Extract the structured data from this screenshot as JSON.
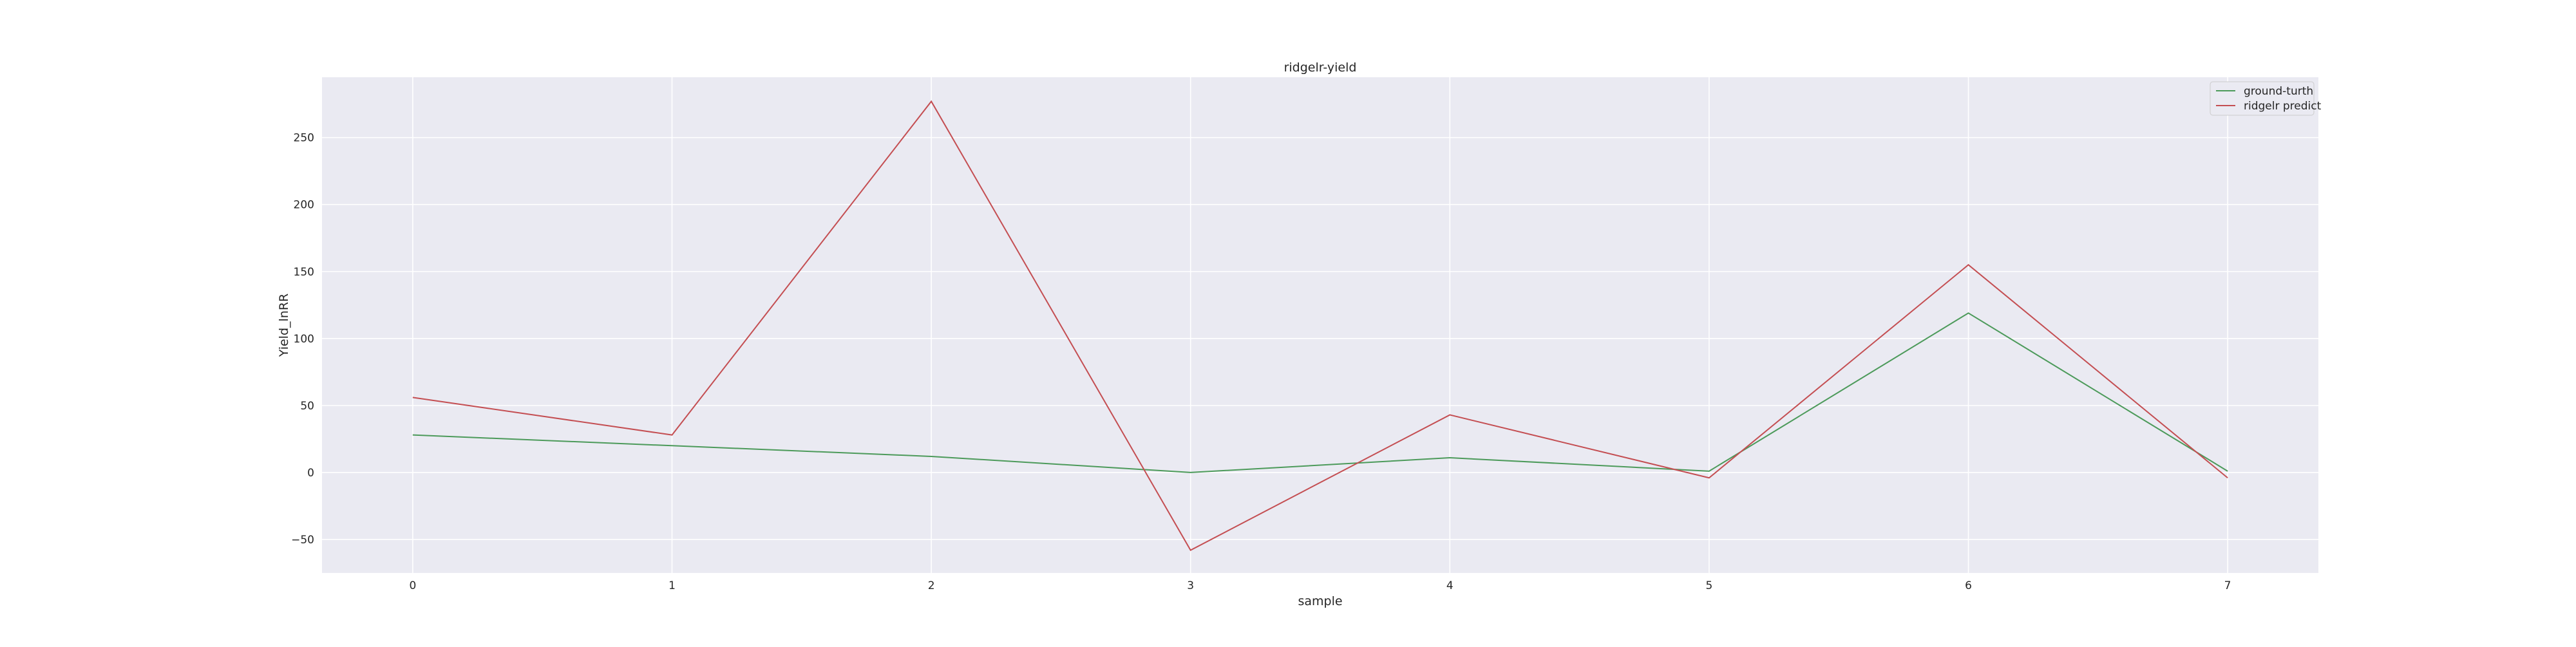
{
  "chart_data": {
    "type": "line",
    "title": "ridgelr-yield",
    "xlabel": "sample",
    "ylabel": "Yield_lnRR",
    "x": [
      0,
      1,
      2,
      3,
      4,
      5,
      6,
      7
    ],
    "xlim": [
      -0.35,
      7.35
    ],
    "ylim": [
      -75,
      295
    ],
    "xticks": [
      0,
      1,
      2,
      3,
      4,
      5,
      6,
      7
    ],
    "yticks": [
      -50,
      0,
      50,
      100,
      150,
      200,
      250
    ],
    "ytick_labels": [
      "−50",
      "0",
      "50",
      "100",
      "150",
      "200",
      "250"
    ],
    "grid": true,
    "legend_position": "top-right",
    "plot_background": "#eaeaf2",
    "series": [
      {
        "name": "ground-turth",
        "color": "#4c9a5a",
        "values": [
          28,
          20,
          12,
          0,
          11,
          1,
          119,
          1
        ]
      },
      {
        "name": "ridgelr predict",
        "color": "#c44e52",
        "values": [
          56,
          28,
          277,
          -58,
          43,
          -4,
          155,
          -4
        ]
      }
    ]
  }
}
